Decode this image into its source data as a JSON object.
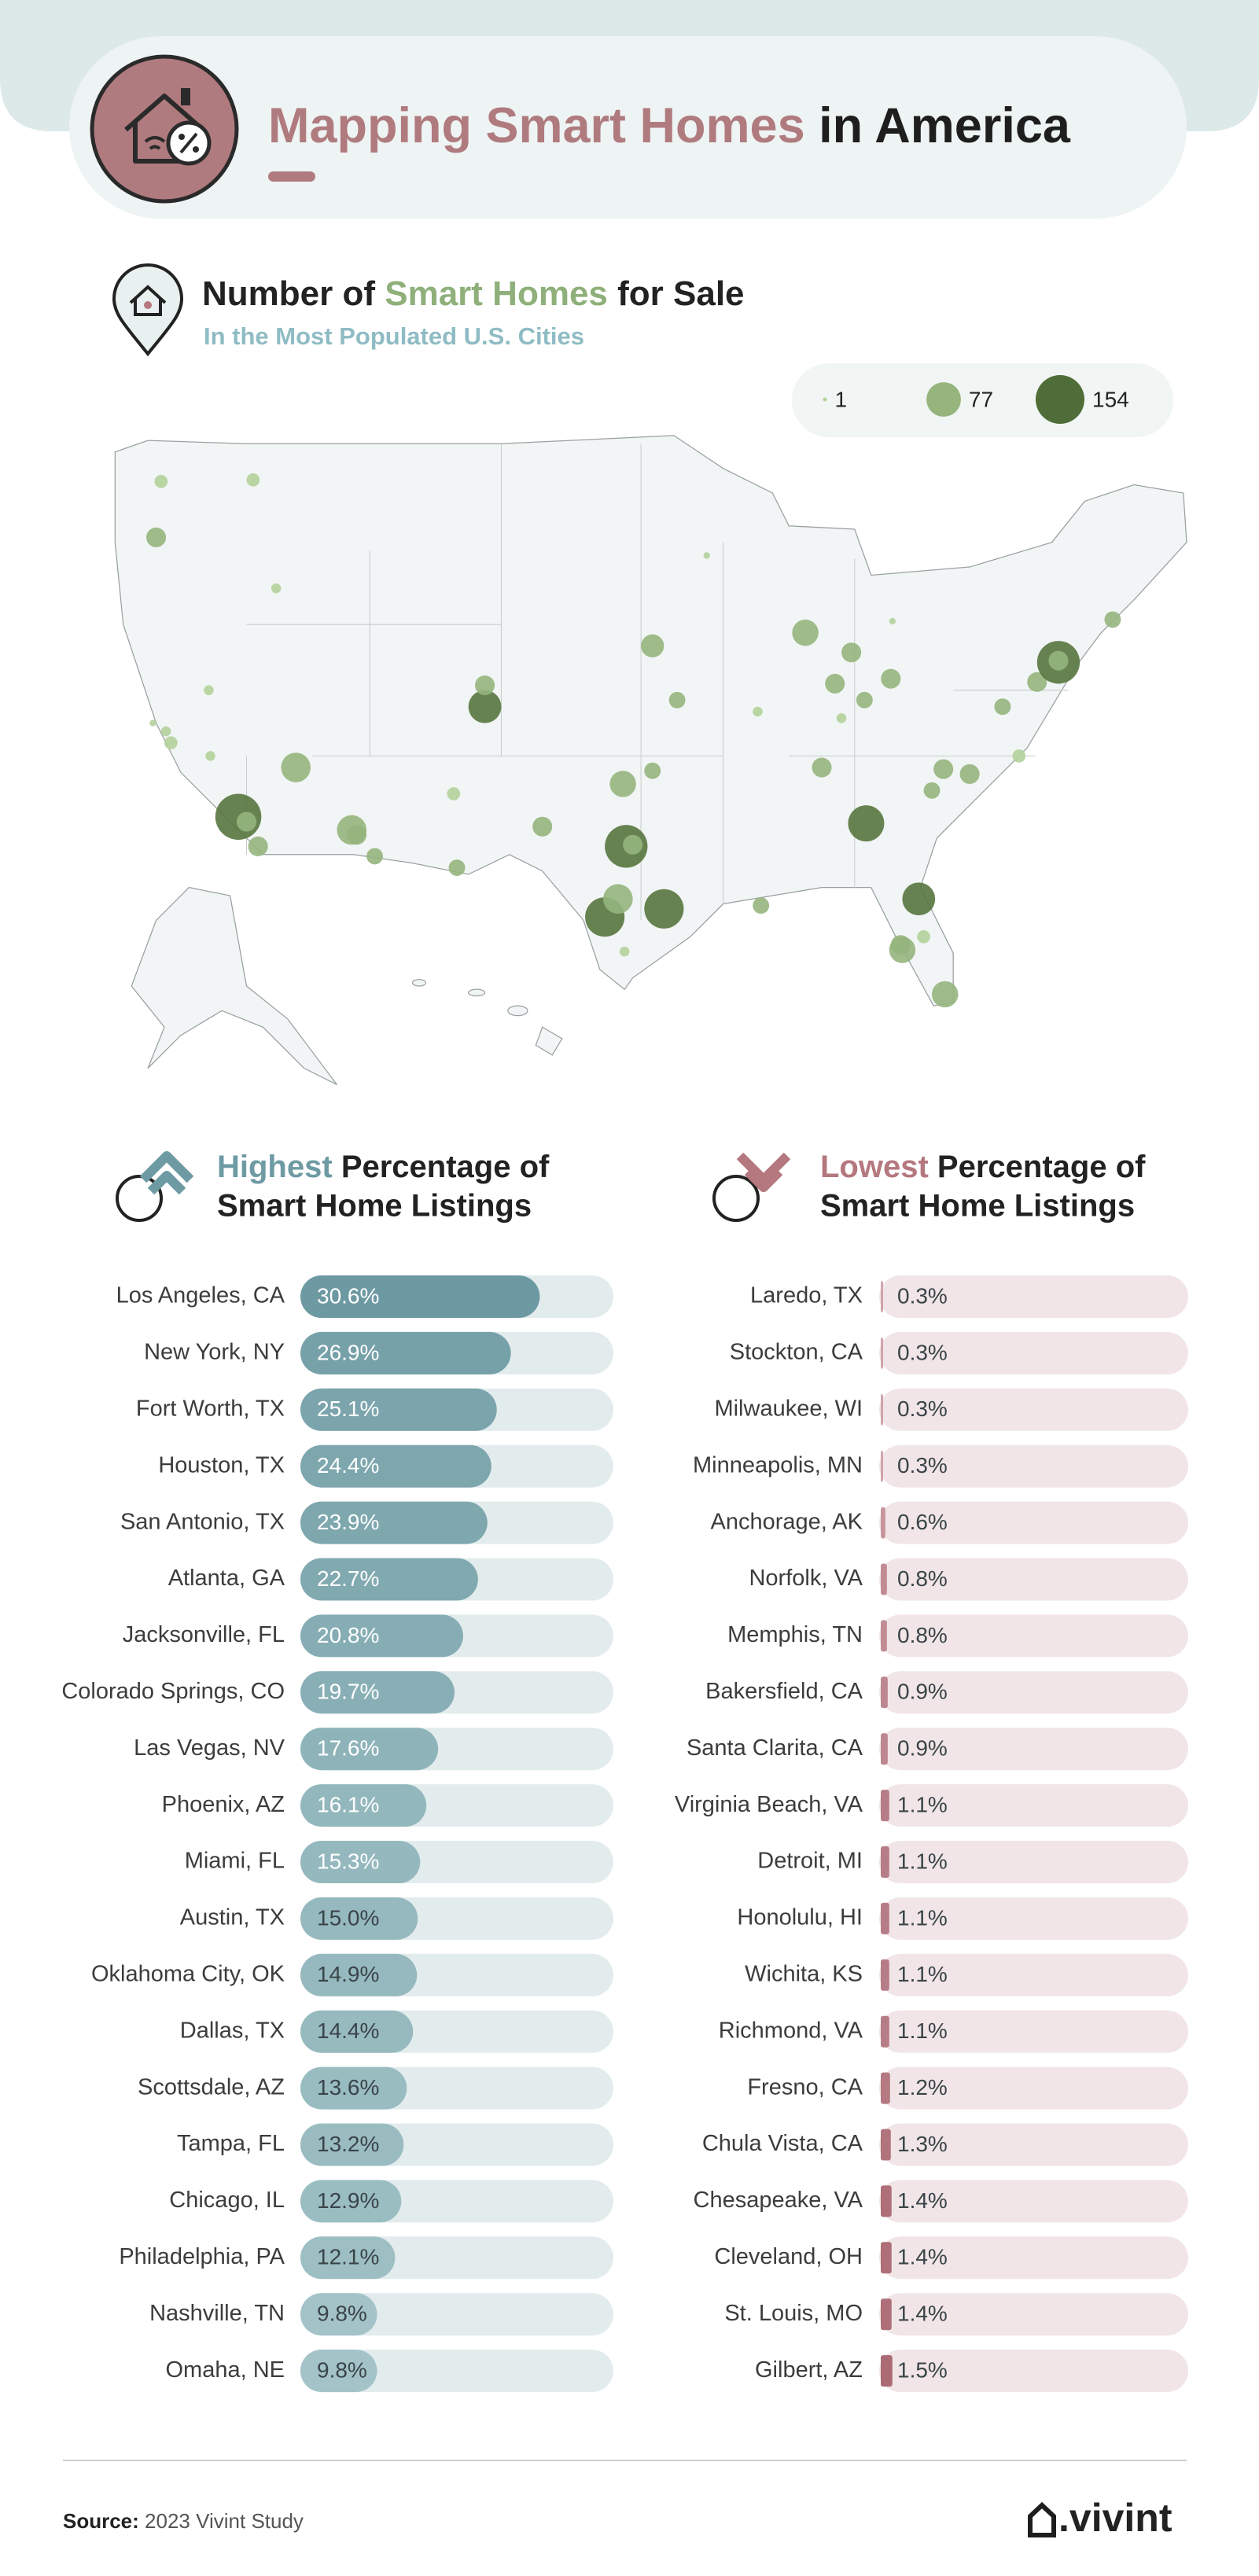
{
  "header": {
    "title_highlight": "Mapping Smart Homes",
    "title_rest": "in America"
  },
  "map": {
    "title_start": "Number of",
    "title_highlight": "Smart Homes",
    "title_end": "for Sale",
    "subtitle": "In the Most Populated U.S. Cities",
    "size_legend": [
      1,
      77,
      154
    ],
    "size_legend_max": 154,
    "color": "#4f6d38"
  },
  "chart_data": [
    {
      "type": "bar",
      "orientation": "horizontal",
      "title": [
        "Highest",
        "Percentage of",
        "Smart Home Listings"
      ],
      "categories": [
        "Los Angeles, CA",
        "New York, NY",
        "Fort Worth, TX",
        "Houston, TX",
        "San Antonio, TX",
        "Atlanta, GA",
        "Jacksonville, FL",
        "Colorado Springs, CO",
        "Las Vegas, NV",
        "Phoenix, AZ",
        "Miami, FL",
        "Austin, TX",
        "Oklahoma City, OK",
        "Dallas, TX",
        "Scottsdale, AZ",
        "Tampa, FL",
        "Chicago, IL",
        "Philadelphia, PA",
        "Nashville, TN",
        "Omaha, NE"
      ],
      "values": [
        30.6,
        26.9,
        25.1,
        24.4,
        23.9,
        22.7,
        20.8,
        19.7,
        17.6,
        16.1,
        15.3,
        15.0,
        14.9,
        14.4,
        13.6,
        13.2,
        12.9,
        12.1,
        9.8,
        9.8
      ],
      "value_labels": [
        "30.6%",
        "26.9%",
        "25.1%",
        "24.4%",
        "23.9%",
        "22.7%",
        "20.8%",
        "19.7%",
        "17.6%",
        "16.1%",
        "15.3%",
        "15.0%",
        "14.9%",
        "14.4%",
        "13.6%",
        "13.2%",
        "12.9%",
        "12.1%",
        "9.8%",
        "9.8%"
      ],
      "xlim": [
        0,
        40
      ],
      "colors": [
        "#bcd7d9",
        "#6c99a2"
      ],
      "track_color": "#e3eced",
      "highlight_color": "#6e9ba3"
    },
    {
      "type": "bar",
      "orientation": "horizontal",
      "title": [
        "Lowest",
        "Percentage of",
        "Smart Home Listings"
      ],
      "categories": [
        "Laredo, TX",
        "Stockton, CA",
        "Milwaukee, WI",
        "Minneapolis, MN",
        "Anchorage, AK",
        "Norfolk, VA",
        "Memphis, TN",
        "Bakersfield, CA",
        "Santa Clarita, CA",
        "Virginia Beach, VA",
        "Detroit, MI",
        "Honolulu, HI",
        "Wichita, KS",
        "Richmond, VA",
        "Fresno, CA",
        "Chula Vista, CA",
        "Chesapeake, VA",
        "Cleveland, OH",
        "St. Louis, MO",
        "Gilbert, AZ"
      ],
      "values": [
        0.3,
        0.3,
        0.3,
        0.3,
        0.6,
        0.8,
        0.8,
        0.9,
        0.9,
        1.1,
        1.1,
        1.1,
        1.1,
        1.1,
        1.2,
        1.3,
        1.4,
        1.4,
        1.4,
        1.5
      ],
      "value_labels": [
        "0.3%",
        "0.3%",
        "0.3%",
        "0.3%",
        "0.6%",
        "0.8%",
        "0.8%",
        "0.9%",
        "0.9%",
        "1.1%",
        "1.1%",
        "1.1%",
        "1.1%",
        "1.1%",
        "1.2%",
        "1.3%",
        "1.4%",
        "1.4%",
        "1.4%",
        "1.5%"
      ],
      "xlim": [
        0,
        40
      ],
      "colors": [
        "#d9b3b8",
        "#a8656f"
      ],
      "track_color": "#f1e5e7",
      "highlight_color": "#b5787f"
    }
  ],
  "footer": {
    "source_label": "Source:",
    "source": "2023 Vivint Study",
    "logo": ".vivint"
  }
}
